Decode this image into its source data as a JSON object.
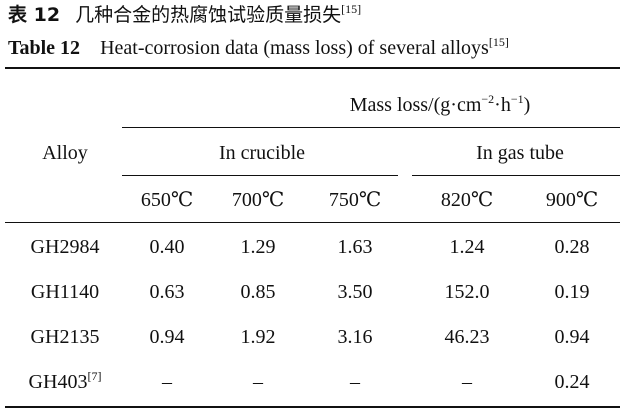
{
  "caption_cn": {
    "label": "表 12",
    "text": "几种合金的热腐蚀试验质量损失",
    "ref": "[15]"
  },
  "caption_en": {
    "label": "Table 12",
    "text": "Heat-corrosion data (mass loss) of several alloys",
    "ref": "[15]"
  },
  "header": {
    "alloy": "Alloy",
    "mass_loss": "Mass loss/(g·cm",
    "mass_loss_exp1": "−2",
    "mass_loss_mid": "·h",
    "mass_loss_exp2": "−1",
    "mass_loss_end": ")",
    "groups": [
      "In crucible",
      "In gas tube"
    ],
    "temps": [
      "650℃",
      "700℃",
      "750℃",
      "820℃",
      "900℃"
    ]
  },
  "rows": [
    {
      "alloy": "GH2984",
      "ref": "",
      "values": [
        "0.40",
        "1.29",
        "1.63",
        "1.24",
        "0.28"
      ]
    },
    {
      "alloy": "GH1140",
      "ref": "",
      "values": [
        "0.63",
        "0.85",
        "3.50",
        "152.0",
        "0.19"
      ]
    },
    {
      "alloy": "GH2135",
      "ref": "",
      "values": [
        "0.94",
        "1.92",
        "3.16",
        "46.23",
        "0.94"
      ]
    },
    {
      "alloy": "GH403",
      "ref": "[7]",
      "values": [
        "–",
        "–",
        "–",
        "–",
        "0.24"
      ]
    }
  ]
}
